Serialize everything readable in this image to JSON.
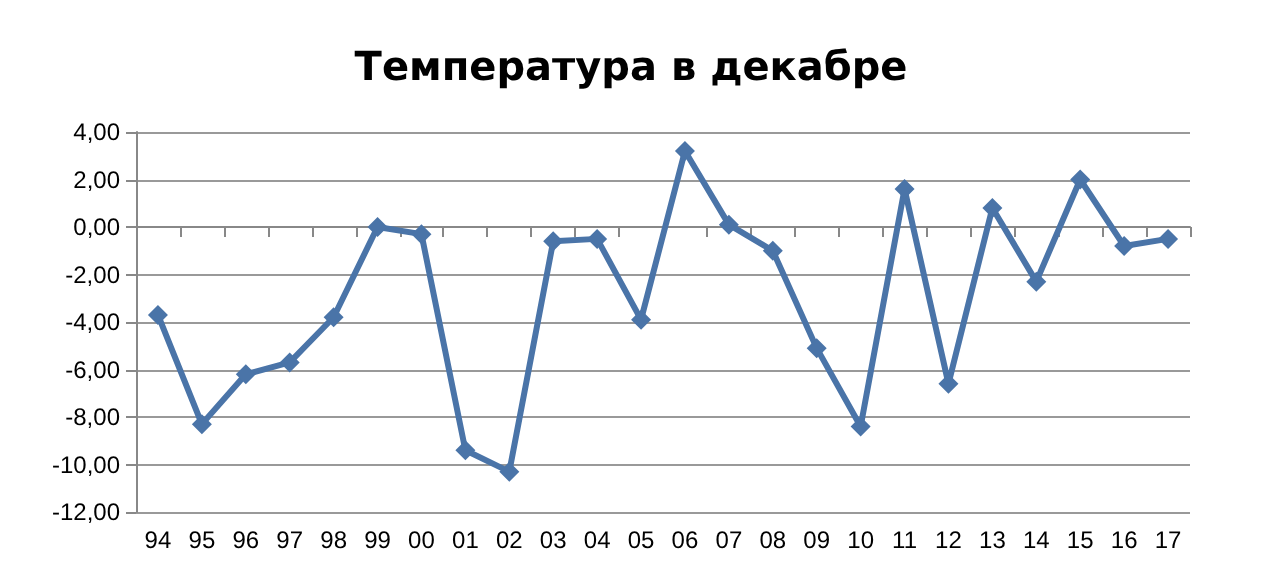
{
  "chart_data": {
    "type": "line",
    "title": "Температура в декабре",
    "categories": [
      "94",
      "95",
      "96",
      "97",
      "98",
      "99",
      "00",
      "01",
      "02",
      "03",
      "04",
      "05",
      "06",
      "07",
      "08",
      "09",
      "10",
      "11",
      "12",
      "13",
      "14",
      "15",
      "16",
      "17"
    ],
    "series": [
      {
        "color": "#4a74a8",
        "values": [
          -3.7,
          -8.3,
          -6.2,
          -5.7,
          -3.8,
          0.0,
          -0.3,
          -9.4,
          -10.3,
          -0.6,
          -0.5,
          -3.9,
          3.2,
          0.1,
          -1.0,
          -5.1,
          -8.4,
          1.6,
          -6.6,
          0.8,
          -2.3,
          2.0,
          -0.8,
          -0.5
        ]
      }
    ],
    "ylim": [
      -12,
      4
    ],
    "yticks": [
      {
        "value": -12,
        "label": "-12,00"
      },
      {
        "value": -10,
        "label": "-10,00"
      },
      {
        "value": -8,
        "label": "-8,00"
      },
      {
        "value": -6,
        "label": "-6,00"
      },
      {
        "value": -4,
        "label": "-4,00"
      },
      {
        "value": -2,
        "label": "-2,00"
      },
      {
        "value": 0,
        "label": "0,00"
      },
      {
        "value": 2,
        "label": "2,00"
      },
      {
        "value": 4,
        "label": "4,00"
      }
    ],
    "grid": "y",
    "marker": "diamond",
    "line_style": "solid"
  }
}
